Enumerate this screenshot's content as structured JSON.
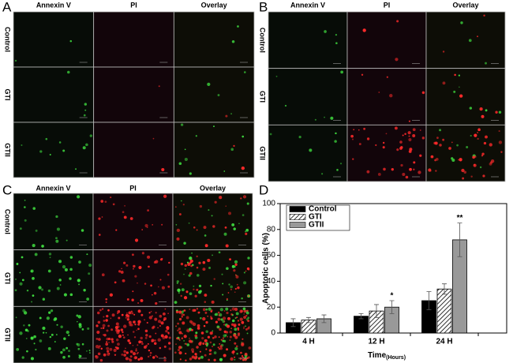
{
  "panels": [
    {
      "label": "A",
      "columns": [
        "Annexin V",
        "PI",
        "Overlay"
      ],
      "rows": [
        "Control",
        "GTI",
        "GTII"
      ]
    },
    {
      "label": "B",
      "columns": [
        "Annexin V",
        "PI",
        "Overlay"
      ],
      "rows": [
        "Control",
        "GTI",
        "GTII"
      ]
    },
    {
      "label": "C",
      "columns": [
        "Annexin V",
        "PI",
        "Overlay"
      ],
      "rows": [
        "Control",
        "GTI",
        "GTII"
      ]
    },
    {
      "label": "D"
    }
  ],
  "chart_data": {
    "type": "bar",
    "ylabel": "Apoptotic cells (%)",
    "xlabel": "Time",
    "xlabel_sub": "(Hours)",
    "categories": [
      "4 H",
      "12 H",
      "24 H"
    ],
    "series": [
      {
        "name": "Control",
        "color": "#000000",
        "values": [
          8,
          13,
          25
        ],
        "errors": [
          3,
          2,
          7
        ]
      },
      {
        "name": "GTI",
        "color": "hatch",
        "values": [
          10,
          17,
          34
        ],
        "errors": [
          2,
          5,
          4
        ]
      },
      {
        "name": "GTII",
        "color": "#999999",
        "values": [
          11,
          20,
          72
        ],
        "errors": [
          3,
          5,
          13
        ],
        "value_annotations": [
          null,
          "*",
          "**"
        ]
      }
    ],
    "ylim": [
      0,
      100
    ],
    "yticks": [
      0,
      20,
      40,
      60,
      80,
      100
    ],
    "legend": "upper left"
  }
}
